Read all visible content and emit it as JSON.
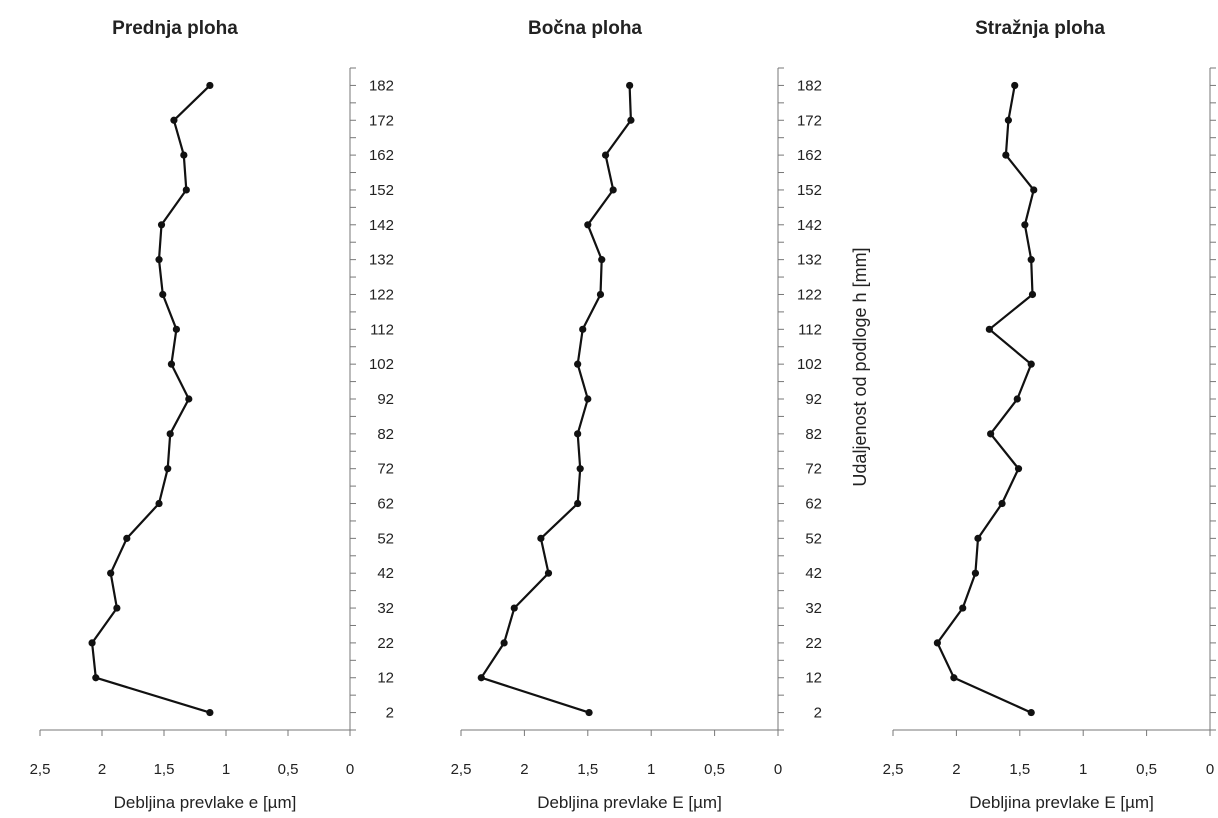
{
  "chart_data": [
    {
      "type": "line",
      "title": "Prednja ploha",
      "xlabel": "Debljina prevlake e [µm]",
      "ylabel": "",
      "xlim": [
        2.5,
        0
      ],
      "x_reversed": true,
      "xticks": [
        "2,5",
        "2",
        "1,5",
        "1",
        "0,5",
        "0"
      ],
      "xtick_values": [
        2.5,
        2,
        1.5,
        1,
        0.5,
        0
      ],
      "ylim": [
        -3,
        187
      ],
      "yticks": [
        "2",
        "12",
        "22",
        "32",
        "42",
        "52",
        "62",
        "72",
        "82",
        "92",
        "102",
        "112",
        "122",
        "132",
        "142",
        "152",
        "162",
        "172",
        "182"
      ],
      "ytick_values": [
        2,
        12,
        22,
        32,
        42,
        52,
        62,
        72,
        82,
        92,
        102,
        112,
        122,
        132,
        142,
        152,
        162,
        172,
        182
      ],
      "grid": false,
      "series": [
        {
          "points": [
            {
              "x": 1.13,
              "y": 2
            },
            {
              "x": 2.05,
              "y": 12
            },
            {
              "x": 2.08,
              "y": 22
            },
            {
              "x": 1.88,
              "y": 32
            },
            {
              "x": 1.93,
              "y": 42
            },
            {
              "x": 1.8,
              "y": 52
            },
            {
              "x": 1.54,
              "y": 62
            },
            {
              "x": 1.47,
              "y": 72
            },
            {
              "x": 1.45,
              "y": 82
            },
            {
              "x": 1.3,
              "y": 92
            },
            {
              "x": 1.44,
              "y": 102
            },
            {
              "x": 1.4,
              "y": 112
            },
            {
              "x": 1.51,
              "y": 122
            },
            {
              "x": 1.54,
              "y": 132
            },
            {
              "x": 1.52,
              "y": 142
            },
            {
              "x": 1.32,
              "y": 152
            },
            {
              "x": 1.34,
              "y": 162
            },
            {
              "x": 1.42,
              "y": 172
            },
            {
              "x": 1.13,
              "y": 182
            }
          ]
        }
      ]
    },
    {
      "type": "line",
      "title": "Bočna ploha",
      "xlabel": "Debljina prevlake E [µm]",
      "ylabel": "Udaljenost od podloge h [mm]",
      "xlim": [
        2.5,
        0
      ],
      "x_reversed": true,
      "xticks": [
        "2,5",
        "2",
        "1,5",
        "1",
        "0,5",
        "0"
      ],
      "xtick_values": [
        2.5,
        2,
        1.5,
        1,
        0.5,
        0
      ],
      "ylim": [
        -3,
        187
      ],
      "yticks": [
        "2",
        "12",
        "22",
        "32",
        "42",
        "52",
        "62",
        "72",
        "82",
        "92",
        "102",
        "112",
        "122",
        "132",
        "142",
        "152",
        "162",
        "172",
        "182"
      ],
      "ytick_values": [
        2,
        12,
        22,
        32,
        42,
        52,
        62,
        72,
        82,
        92,
        102,
        112,
        122,
        132,
        142,
        152,
        162,
        172,
        182
      ],
      "grid": false,
      "series": [
        {
          "points": [
            {
              "x": 1.49,
              "y": 2
            },
            {
              "x": 2.34,
              "y": 12
            },
            {
              "x": 2.16,
              "y": 22
            },
            {
              "x": 2.08,
              "y": 32
            },
            {
              "x": 1.81,
              "y": 42
            },
            {
              "x": 1.87,
              "y": 52
            },
            {
              "x": 1.58,
              "y": 62
            },
            {
              "x": 1.56,
              "y": 72
            },
            {
              "x": 1.58,
              "y": 82
            },
            {
              "x": 1.5,
              "y": 92
            },
            {
              "x": 1.58,
              "y": 102
            },
            {
              "x": 1.54,
              "y": 112
            },
            {
              "x": 1.4,
              "y": 122
            },
            {
              "x": 1.39,
              "y": 132
            },
            {
              "x": 1.5,
              "y": 142
            },
            {
              "x": 1.3,
              "y": 152
            },
            {
              "x": 1.36,
              "y": 162
            },
            {
              "x": 1.16,
              "y": 172
            },
            {
              "x": 1.17,
              "y": 182
            }
          ]
        }
      ]
    },
    {
      "type": "line",
      "title": "Stražnja ploha",
      "xlabel": "Debljina prevlake E [µm]",
      "ylabel": "Udaljenost od podloge h [mm]",
      "xlim": [
        2.5,
        0
      ],
      "x_reversed": true,
      "xticks": [
        "2,5",
        "2",
        "1,5",
        "1",
        "0,5",
        "0"
      ],
      "xtick_values": [
        2.5,
        2,
        1.5,
        1,
        0.5,
        0
      ],
      "ylim": [
        -3,
        187
      ],
      "yticks": [
        "2",
        "12",
        "22",
        "32",
        "42",
        "52",
        "62",
        "72",
        "82",
        "92",
        "102",
        "112",
        "122",
        "132",
        "142",
        "152",
        "162",
        "172",
        "182"
      ],
      "ytick_values": [
        2,
        12,
        22,
        32,
        42,
        52,
        62,
        72,
        82,
        92,
        102,
        112,
        122,
        132,
        142,
        152,
        162,
        172,
        182
      ],
      "grid": false,
      "series": [
        {
          "points": [
            {
              "x": 1.41,
              "y": 2
            },
            {
              "x": 2.02,
              "y": 12
            },
            {
              "x": 2.15,
              "y": 22
            },
            {
              "x": 1.95,
              "y": 32
            },
            {
              "x": 1.85,
              "y": 42
            },
            {
              "x": 1.83,
              "y": 52
            },
            {
              "x": 1.64,
              "y": 62
            },
            {
              "x": 1.51,
              "y": 72
            },
            {
              "x": 1.73,
              "y": 82
            },
            {
              "x": 1.52,
              "y": 92
            },
            {
              "x": 1.41,
              "y": 102
            },
            {
              "x": 1.74,
              "y": 112
            },
            {
              "x": 1.4,
              "y": 122
            },
            {
              "x": 1.41,
              "y": 132
            },
            {
              "x": 1.46,
              "y": 142
            },
            {
              "x": 1.39,
              "y": 152
            },
            {
              "x": 1.61,
              "y": 162
            },
            {
              "x": 1.59,
              "y": 172
            },
            {
              "x": 1.54,
              "y": 182
            }
          ]
        }
      ]
    }
  ]
}
